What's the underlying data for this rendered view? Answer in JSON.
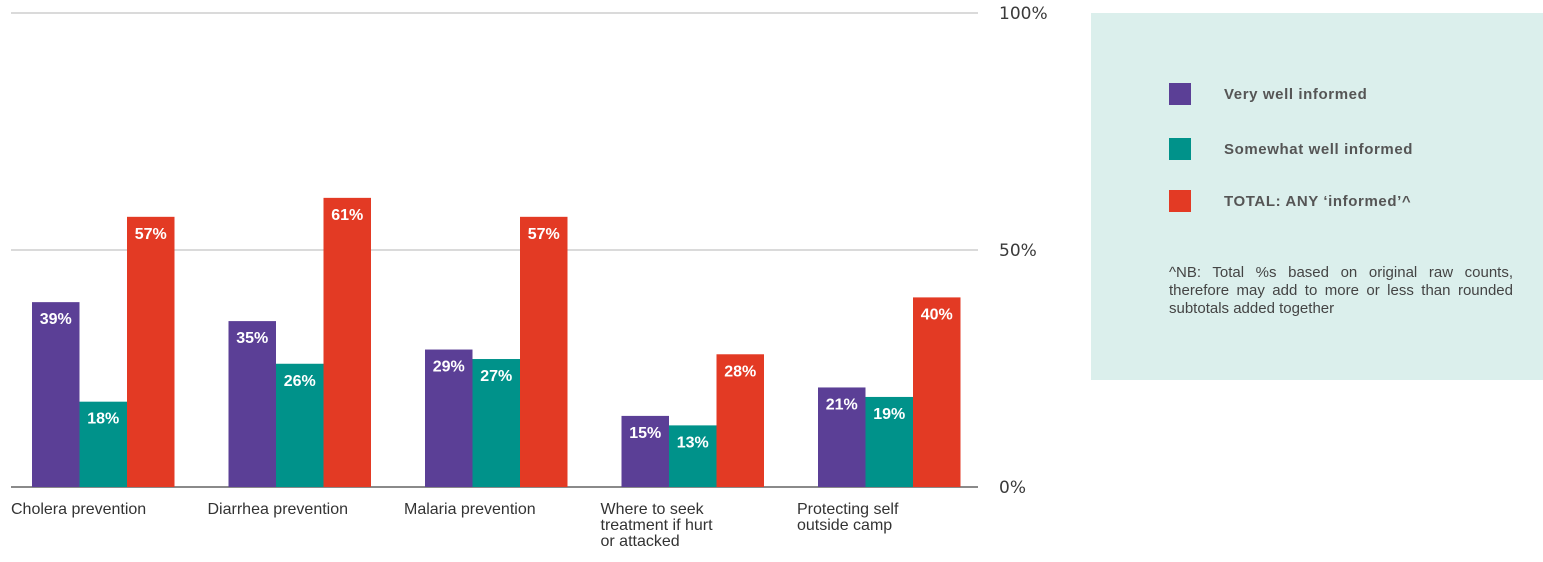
{
  "chart_data": {
    "type": "bar",
    "categories": [
      [
        "Cholera prevention"
      ],
      [
        "Diarrhea prevention"
      ],
      [
        "Malaria prevention"
      ],
      [
        "Where to seek",
        "treatment if hurt",
        "or attacked"
      ],
      [
        "Protecting self",
        "outside camp"
      ]
    ],
    "series": [
      {
        "name": "Very well informed",
        "color": "#5b3f96",
        "values": [
          39,
          35,
          29,
          15,
          21
        ]
      },
      {
        "name": "Somewhat well informed",
        "color": "#00928a",
        "values": [
          18,
          26,
          27,
          13,
          19
        ]
      },
      {
        "name": "TOTAL: ANY ‘informed’^",
        "color": "#e33a24",
        "values": [
          57,
          61,
          57,
          28,
          40
        ]
      }
    ],
    "ylim": [
      0,
      100
    ],
    "yticks": [
      0,
      50,
      100
    ],
    "ytick_labels": [
      "0%",
      "50%",
      "100%"
    ],
    "y_axis_side": "right",
    "grid": true,
    "legend_position": "right",
    "value_suffix": "%"
  },
  "legend": {
    "items": [
      {
        "label": "Very well informed",
        "color": "#5b3f96"
      },
      {
        "label": "Somewhat well informed",
        "color": "#00928a"
      },
      {
        "label": "TOTAL: ANY ‘informed’^",
        "color": "#e33a24"
      }
    ],
    "note": "^NB: Total %s based on original raw counts, therefore may add to more or less than rounded subtotals added together"
  }
}
